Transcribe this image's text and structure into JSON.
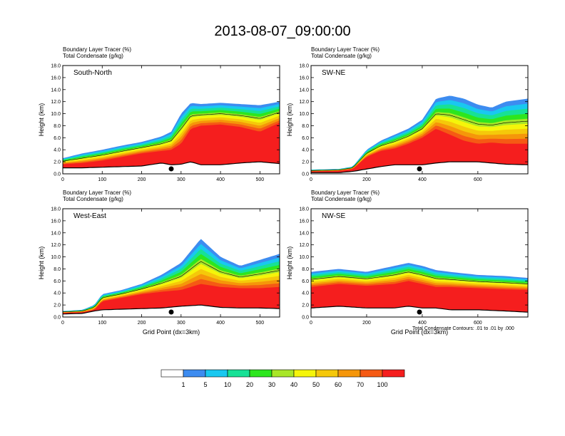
{
  "figure": {
    "title": "2013-08-07_09:00:00",
    "footnote": "Total Condensate Contours: .01 to .01 by .000",
    "marker_note": "black dot marks site location",
    "colorbar": {
      "labels": [
        "1",
        "5",
        "10",
        "20",
        "30",
        "40",
        "50",
        "60",
        "70",
        "100"
      ],
      "colors": [
        "#ffffff",
        "#3d8cf0",
        "#19c8f0",
        "#17e196",
        "#2de61e",
        "#a8e628",
        "#f5f50a",
        "#f5c80a",
        "#f5960a",
        "#f55a14",
        "#f51e1e"
      ]
    }
  },
  "chart_data": [
    {
      "type": "area",
      "panel_label": "South-North",
      "subtitle_1": "Boundary Layer Tracer   (%)",
      "subtitle_2": "Total Condensate   (g/kg)",
      "ylabel": "Height (km)",
      "xlabel": "",
      "xlim": [
        0,
        550
      ],
      "ylim": [
        0,
        18
      ],
      "xticks": [
        0,
        100,
        200,
        300,
        400,
        500
      ],
      "yticks": [
        0.0,
        2.0,
        4.0,
        6.0,
        8.0,
        10.0,
        12.0,
        14.0,
        16.0,
        18.0
      ],
      "marker_x": 275,
      "x": [
        0,
        50,
        100,
        150,
        200,
        250,
        275,
        300,
        325,
        350,
        400,
        450,
        500,
        550
      ],
      "terrain": [
        1.0,
        1.0,
        1.1,
        1.2,
        1.3,
        1.8,
        1.5,
        1.6,
        2.0,
        1.5,
        1.5,
        1.8,
        2.0,
        1.7
      ],
      "cloud_top": [
        2.6,
        3.4,
        4.0,
        4.7,
        5.3,
        6.2,
        7.0,
        10.0,
        11.8,
        11.6,
        11.8,
        11.6,
        11.4,
        12.0
      ],
      "red_top": [
        1.6,
        1.8,
        2.2,
        2.8,
        3.4,
        3.8,
        4.0,
        5.0,
        7.5,
        8.0,
        8.2,
        7.8,
        7.0,
        8.5
      ]
    },
    {
      "type": "area",
      "panel_label": "SW-NE",
      "subtitle_1": "Boundary Layer Tracer   (%)",
      "subtitle_2": "Total Condensate   (g/kg)",
      "ylabel": "Height (km)",
      "xlabel": "",
      "xlim": [
        0,
        780
      ],
      "ylim": [
        0,
        18
      ],
      "xticks": [
        0,
        200,
        400,
        600
      ],
      "yticks": [
        0.0,
        2.0,
        4.0,
        6.0,
        8.0,
        10.0,
        12.0,
        14.0,
        16.0,
        18.0
      ],
      "marker_x": 390,
      "x": [
        0,
        100,
        150,
        200,
        250,
        300,
        350,
        400,
        450,
        500,
        550,
        600,
        650,
        700,
        780
      ],
      "terrain": [
        0.2,
        0.2,
        0.4,
        0.8,
        1.2,
        1.5,
        1.5,
        1.5,
        1.8,
        2.0,
        2.0,
        2.0,
        1.8,
        1.6,
        1.5
      ],
      "cloud_top": [
        0.7,
        0.8,
        1.2,
        4.0,
        5.5,
        6.5,
        7.5,
        9.0,
        12.5,
        13.0,
        12.5,
        11.5,
        11.0,
        12.0,
        12.5
      ],
      "red_top": [
        0.4,
        0.5,
        0.8,
        2.8,
        3.8,
        4.2,
        5.0,
        6.0,
        7.5,
        6.5,
        5.5,
        5.0,
        5.2,
        5.0,
        5.0
      ]
    },
    {
      "type": "area",
      "panel_label": "West-East",
      "subtitle_1": "Boundary Layer Tracer   (%)",
      "subtitle_2": "Total Condensate   (g/kg)",
      "ylabel": "Height (km)",
      "xlabel": "Grid Point (dx=3km)",
      "xlim": [
        0,
        550
      ],
      "ylim": [
        0,
        18
      ],
      "xticks": [
        0,
        100,
        200,
        300,
        400,
        500
      ],
      "yticks": [
        0.0,
        2.0,
        4.0,
        6.0,
        8.0,
        10.0,
        12.0,
        14.0,
        16.0,
        18.0
      ],
      "marker_x": 275,
      "x": [
        0,
        50,
        80,
        100,
        150,
        200,
        250,
        300,
        350,
        400,
        450,
        500,
        550
      ],
      "terrain": [
        0.5,
        0.6,
        1.0,
        1.2,
        1.3,
        1.4,
        1.5,
        1.8,
        2.0,
        1.6,
        1.5,
        1.5,
        1.4
      ],
      "cloud_top": [
        1.0,
        1.2,
        2.0,
        3.8,
        4.5,
        5.5,
        7.0,
        9.0,
        13.0,
        10.0,
        8.5,
        9.5,
        10.5
      ],
      "red_top": [
        0.7,
        0.8,
        1.2,
        2.6,
        3.2,
        3.8,
        4.2,
        4.5,
        5.5,
        5.0,
        4.8,
        4.8,
        5.0
      ]
    },
    {
      "type": "area",
      "panel_label": "NW-SE",
      "subtitle_1": "Boundary Layer Tracer   (%)",
      "subtitle_2": "Total Condensate   (g/kg)",
      "ylabel": "Height (km)",
      "xlabel": "Grid Point (dx=3km)",
      "xlim": [
        0,
        780
      ],
      "ylim": [
        0,
        18
      ],
      "xticks": [
        0,
        200,
        400,
        600
      ],
      "yticks": [
        0.0,
        2.0,
        4.0,
        6.0,
        8.0,
        10.0,
        12.0,
        14.0,
        16.0,
        18.0
      ],
      "marker_x": 390,
      "x": [
        0,
        100,
        200,
        300,
        350,
        400,
        450,
        500,
        600,
        700,
        780
      ],
      "terrain": [
        1.5,
        1.8,
        1.5,
        1.5,
        1.8,
        1.5,
        1.5,
        1.2,
        1.2,
        1.0,
        0.8
      ],
      "cloud_top": [
        7.5,
        8.0,
        7.5,
        8.5,
        9.0,
        8.5,
        7.8,
        7.5,
        7.0,
        6.8,
        6.5
      ],
      "red_top": [
        5.0,
        5.5,
        5.2,
        5.5,
        6.0,
        5.5,
        5.0,
        5.0,
        4.8,
        4.6,
        4.5
      ]
    }
  ]
}
